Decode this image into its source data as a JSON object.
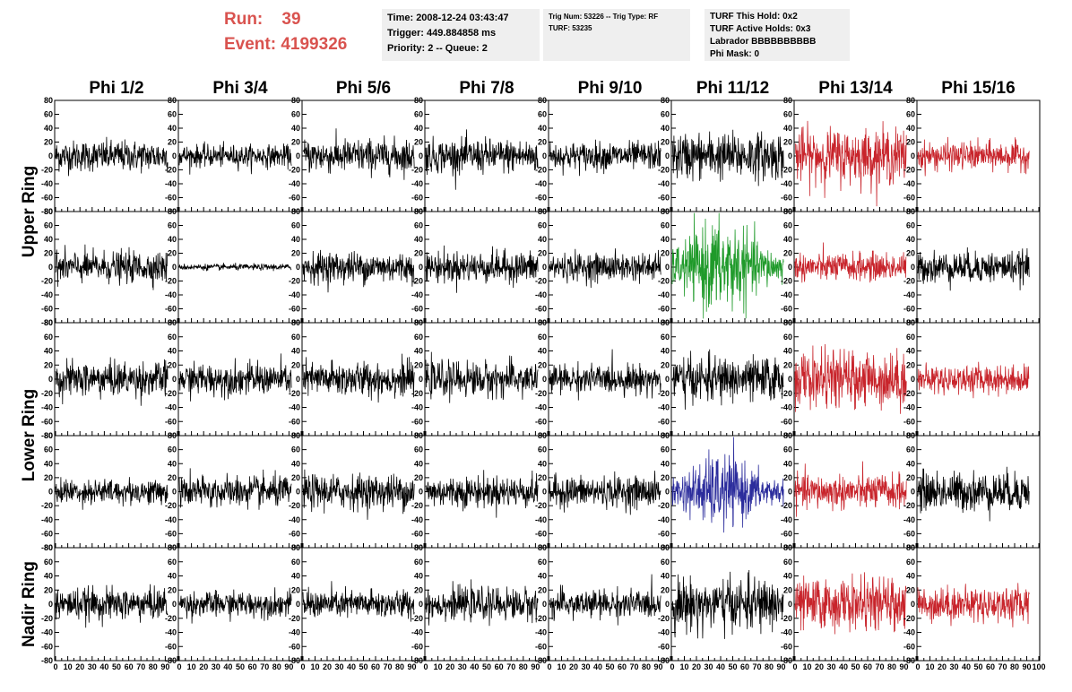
{
  "run": {
    "run_label": "Run:",
    "run_value": "39",
    "event_label": "Event:",
    "event_value": "4199326"
  },
  "info_time": {
    "line1": "Time: 2008-12-24 03:43:47",
    "line2": "Trigger: 449.884858 ms",
    "line3": "Priority: 2 -- Queue: 2"
  },
  "info_trig": {
    "line1": "Trig Num: 53226 -- Trig Type: RF",
    "line2": "",
    "line3": "TURF: 53235"
  },
  "info_turf": {
    "line1": "TURF This Hold: 0x2",
    "line2": "TURF Active Holds: 0x3",
    "line3": "Labrador BBBBBBBBBB",
    "line4": "Phi Mask: 0"
  },
  "rings": [
    "Upper Ring",
    "Lower Ring",
    "Nadir Ring"
  ],
  "colors": {
    "black": "#000000",
    "red": "#c8242b",
    "green": "#1f9a2a",
    "blue": "#2b2c9c"
  },
  "chart_data": {
    "type": "line",
    "title": "",
    "xlabel": "",
    "ylabel": "",
    "xlim": [
      0,
      100
    ],
    "ylim": [
      -80,
      80
    ],
    "xticks": [
      0,
      10,
      20,
      30,
      40,
      50,
      60,
      70,
      80,
      90,
      100
    ],
    "yticks": [
      -80,
      -60,
      -40,
      -20,
      0,
      20,
      40,
      60,
      80
    ],
    "columns": [
      "Phi 1/2",
      "Phi 3/4",
      "Phi 5/6",
      "Phi 7/8",
      "Phi 9/10",
      "Phi 11/12",
      "Phi 13/14",
      "Phi 15/16"
    ],
    "rows": [
      [
        {
          "color": "black",
          "amplitude": 20
        },
        {
          "color": "black",
          "amplitude": 14
        },
        {
          "color": "black",
          "amplitude": 22
        },
        {
          "color": "black",
          "amplitude": 22
        },
        {
          "color": "black",
          "amplitude": 18
        },
        {
          "color": "black",
          "amplitude": 30
        },
        {
          "color": "red",
          "amplitude": 35
        },
        {
          "color": "red",
          "amplitude": 18
        }
      ],
      [
        {
          "color": "black",
          "amplitude": 20
        },
        {
          "color": "black",
          "amplitude": 4
        },
        {
          "color": "black",
          "amplitude": 20
        },
        {
          "color": "black",
          "amplitude": 20
        },
        {
          "color": "black",
          "amplitude": 18
        },
        {
          "color": "green",
          "amplitude": 50
        },
        {
          "color": "red",
          "amplitude": 18
        },
        {
          "color": "black",
          "amplitude": 20
        }
      ],
      [
        {
          "color": "black",
          "amplitude": 22
        },
        {
          "color": "black",
          "amplitude": 20
        },
        {
          "color": "black",
          "amplitude": 22
        },
        {
          "color": "black",
          "amplitude": 22
        },
        {
          "color": "black",
          "amplitude": 18
        },
        {
          "color": "black",
          "amplitude": 28
        },
        {
          "color": "red",
          "amplitude": 35
        },
        {
          "color": "red",
          "amplitude": 18
        }
      ],
      [
        {
          "color": "black",
          "amplitude": 16
        },
        {
          "color": "black",
          "amplitude": 20
        },
        {
          "color": "black",
          "amplitude": 22
        },
        {
          "color": "black",
          "amplitude": 20
        },
        {
          "color": "black",
          "amplitude": 20
        },
        {
          "color": "blue",
          "amplitude": 38
        },
        {
          "color": "red",
          "amplitude": 22
        },
        {
          "color": "black",
          "amplitude": 25
        }
      ],
      [
        {
          "color": "black",
          "amplitude": 20
        },
        {
          "color": "black",
          "amplitude": 16
        },
        {
          "color": "black",
          "amplitude": 18
        },
        {
          "color": "black",
          "amplitude": 20
        },
        {
          "color": "black",
          "amplitude": 18
        },
        {
          "color": "black",
          "amplitude": 32
        },
        {
          "color": "red",
          "amplitude": 32
        },
        {
          "color": "red",
          "amplitude": 22
        }
      ]
    ]
  }
}
